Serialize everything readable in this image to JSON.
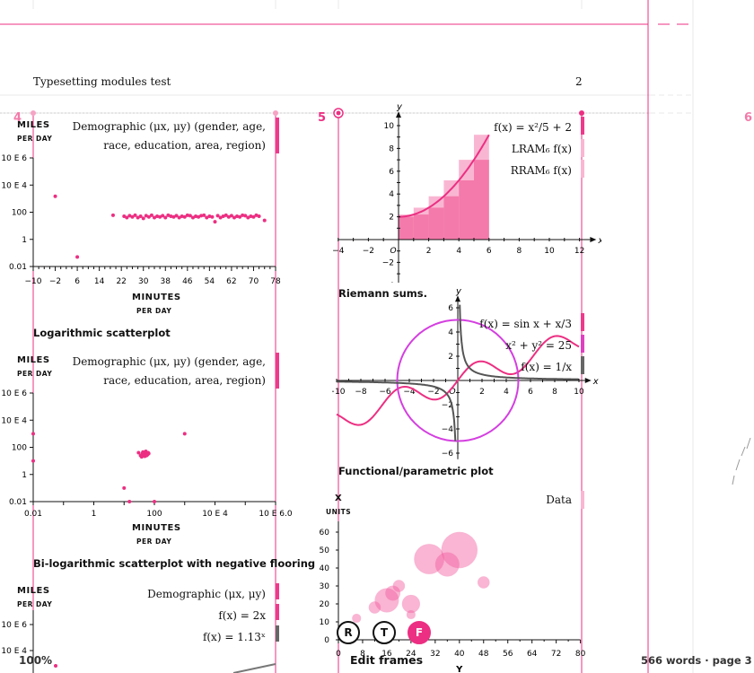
{
  "header": {
    "running_title": "Typesetting modules test",
    "page_number": "2"
  },
  "page_markers": {
    "left": "4",
    "center": "5",
    "right": "6"
  },
  "figures": {
    "log_scatter": {
      "ylabel": "MILES",
      "ylabel_sub": "PER DAY",
      "xlabel": "MINUTES",
      "xlabel_sub": "PER DAY",
      "legend": [
        "Demographic (μx, μy) (gender, age,",
        "race, education, area, region)"
      ],
      "yticks": [
        "10 E 6",
        "10 E 4",
        "100",
        "1",
        "0.01"
      ],
      "xticks": [
        "−10",
        "−2",
        "6",
        "14",
        "22",
        "30",
        "38",
        "46",
        "54",
        "62",
        "70",
        "78"
      ],
      "caption": "Logarithmic scatterplot"
    },
    "bilog_scatter": {
      "ylabel": "MILES",
      "ylabel_sub": "PER DAY",
      "xlabel": "MINUTES",
      "xlabel_sub": "PER DAY",
      "legend": [
        "Demographic (μx, μy) (gender, age,",
        "race, education, area, region)"
      ],
      "yticks": [
        "10 E 6",
        "10 E 4",
        "100",
        "1",
        "0.01"
      ],
      "xticks": [
        "0.01",
        "1",
        "100",
        "10 E 4",
        "10 E 6.0"
      ],
      "caption": "Bi-logarithmic scatterplot with negative flooring"
    },
    "growth": {
      "ylabel": "MILES",
      "ylabel_sub": "PER DAY",
      "legend": [
        "Demographic (μx, μy)",
        "f(x) = 2x",
        "f(x) = 1.13ˣ"
      ],
      "yticks": [
        "10 E 6",
        "10 E 4"
      ]
    },
    "riemann": {
      "legend": [
        "f(x) = x²/5 + 2",
        "LRAM₆ f(x)",
        "RRAM₆ f(x)"
      ],
      "caption": "Riemann sums.",
      "xticks": [
        "−4",
        "−2",
        "O",
        "2",
        "4",
        "6",
        "8",
        "10",
        "12"
      ],
      "yticks": [
        "10",
        "8",
        "6",
        "4",
        "2",
        "−2",
        "−4"
      ],
      "xaxis": "x",
      "yaxis": "y"
    },
    "functional": {
      "legend": [
        "f(x) = sin x + x/3",
        "x² + y² = 25",
        "f(x) = 1/x"
      ],
      "caption": "Functional/parametric plot",
      "xticks": [
        "−10",
        "−8",
        "−6",
        "−4",
        "−2",
        "O",
        "2",
        "4",
        "6",
        "8",
        "10"
      ],
      "yticks": [
        "6",
        "4",
        "2",
        "−2",
        "−4",
        "−6"
      ],
      "xaxis": "x",
      "yaxis": "y"
    },
    "bubble": {
      "ylabel": "X",
      "ylabel_sub": "UNITS",
      "legend": "Data",
      "xlabel": "Y",
      "yticks": [
        "60",
        "50",
        "40",
        "30",
        "20",
        "10",
        "0"
      ],
      "xticks": [
        "0",
        "8",
        "16",
        "24",
        "32",
        "40",
        "48",
        "56",
        "64",
        "72",
        "80"
      ]
    }
  },
  "toolbar": {
    "zoom": "100%",
    "buttons": [
      "R",
      "T",
      "F"
    ],
    "edit_frames": "Edit frames",
    "status": "566 words · page 3"
  },
  "chart_data": [
    {
      "type": "scatter",
      "title": "Logarithmic scatterplot",
      "xlabel": "MINUTES PER DAY",
      "ylabel": "MILES PER DAY",
      "xlim": [
        -10,
        78
      ],
      "yscale": "log",
      "ylim": [
        0.01,
        1000000
      ],
      "x": [
        -2,
        6,
        19,
        23,
        24,
        25,
        26,
        27,
        28,
        29,
        30,
        31,
        32,
        33,
        34,
        35,
        36,
        37,
        38,
        39,
        40,
        41,
        42,
        43,
        44,
        45,
        46,
        47,
        48,
        49,
        50,
        51,
        52,
        53,
        54,
        55,
        56,
        57,
        58,
        59,
        60,
        61,
        62,
        63,
        64,
        65,
        66,
        67,
        68,
        69,
        70,
        71,
        72,
        74
      ],
      "y": [
        1500,
        0.05,
        60,
        50,
        40,
        55,
        45,
        60,
        40,
        50,
        35,
        55,
        45,
        60,
        40,
        50,
        45,
        55,
        40,
        60,
        50,
        45,
        55,
        40,
        50,
        45,
        60,
        55,
        40,
        50,
        45,
        55,
        60,
        40,
        50,
        45,
        20,
        55,
        40,
        50,
        60,
        45,
        55,
        40,
        50,
        45,
        60,
        55,
        40,
        50,
        45,
        60,
        50,
        25
      ]
    },
    {
      "type": "scatter",
      "title": "Bi-logarithmic scatterplot with negative flooring",
      "xlabel": "MINUTES PER DAY",
      "ylabel": "MILES PER DAY",
      "xscale": "log",
      "yscale": "log",
      "xlim": [
        0.01,
        1000000
      ],
      "ylim": [
        0.01,
        1000000
      ],
      "x": [
        0.01,
        0.01,
        10,
        30,
        40,
        50,
        60,
        35,
        45,
        55,
        65,
        38,
        48,
        58,
        42,
        52,
        62,
        1000,
        15,
        100
      ],
      "y": [
        1000,
        10,
        0.1,
        40,
        35,
        40,
        30,
        25,
        30,
        25,
        35,
        20,
        22,
        28,
        45,
        50,
        40,
        1000,
        0.01,
        0.01
      ]
    },
    {
      "type": "bar",
      "title": "Riemann sums.",
      "x": [
        0,
        1,
        2,
        3,
        4,
        5
      ],
      "lram": [
        2,
        2.2,
        2.8,
        3.8,
        5.2,
        7
      ],
      "rram": [
        2.2,
        2.8,
        3.8,
        5.2,
        7,
        9.2
      ],
      "series": [
        {
          "name": "f(x) = x²/5 + 2",
          "expr": "x^2/5+2"
        }
      ],
      "xlim": [
        -4,
        12
      ],
      "ylim": [
        -4,
        10
      ]
    },
    {
      "type": "line",
      "title": "Functional/parametric plot",
      "xlim": [
        -10,
        10
      ],
      "ylim": [
        -6,
        6
      ],
      "series": [
        {
          "name": "f(x) = sin x + x/3",
          "expr": "sin(x)+x/3"
        },
        {
          "name": "x² + y² = 25",
          "expr": "circle r=5"
        },
        {
          "name": "f(x) = 1/x",
          "expr": "1/x"
        }
      ]
    },
    {
      "type": "scatter",
      "title": "",
      "xlabel": "Y",
      "ylabel": "X UNITS",
      "xlim": [
        0,
        80
      ],
      "ylim": [
        0,
        60
      ],
      "series": [
        {
          "name": "Data",
          "x": [
            4,
            16,
            20,
            24,
            30,
            36,
            40,
            48,
            6,
            12,
            18,
            24
          ],
          "y": [
            6,
            22,
            30,
            20,
            45,
            42,
            50,
            32,
            12,
            18,
            26,
            14
          ],
          "r": [
            2,
            4,
            2,
            3,
            5,
            4,
            6,
            2,
            1.5,
            2,
            2.5,
            1.5
          ]
        }
      ]
    }
  ]
}
